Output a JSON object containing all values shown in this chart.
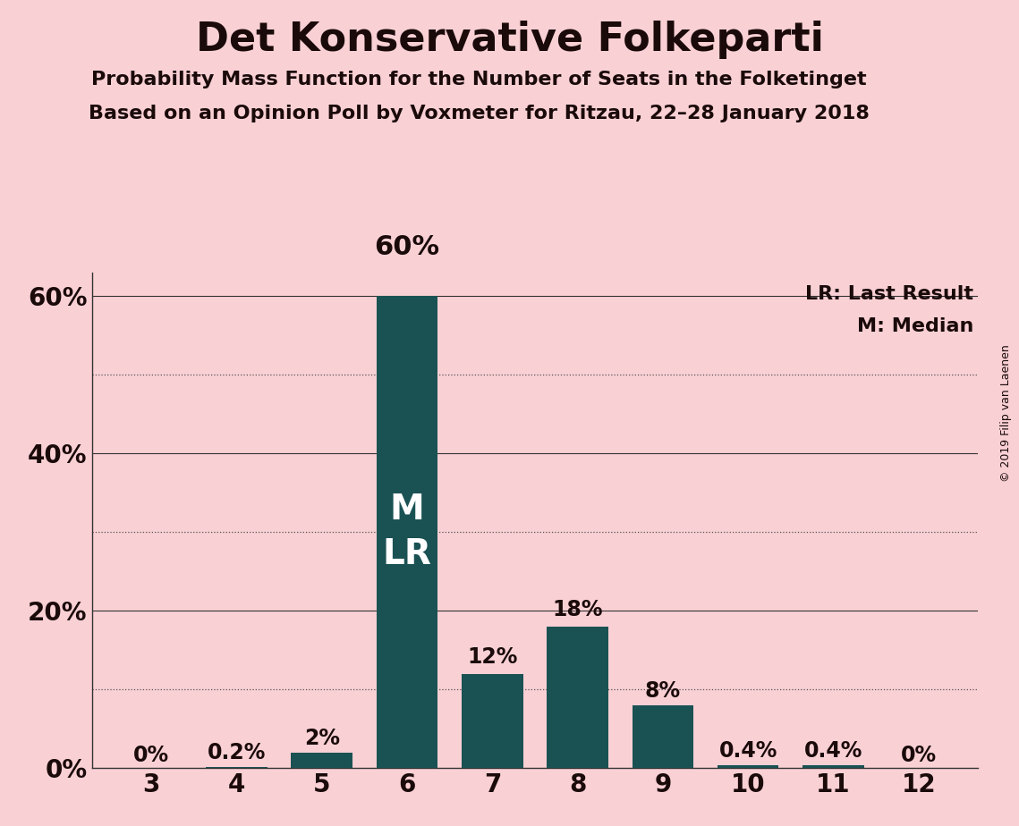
{
  "title": "Det Konservative Folkeparti",
  "subtitle1": "Probability Mass Function for the Number of Seats in the Folketinget",
  "subtitle2": "Based on an Opinion Poll by Voxmeter for Ritzau, 22–28 January 2018",
  "copyright": "© 2019 Filip van Laenen",
  "categories": [
    3,
    4,
    5,
    6,
    7,
    8,
    9,
    10,
    11,
    12
  ],
  "values": [
    0.0,
    0.2,
    2.0,
    60.0,
    12.0,
    18.0,
    8.0,
    0.4,
    0.4,
    0.0
  ],
  "labels": [
    "0%",
    "0.2%",
    "2%",
    "60%",
    "12%",
    "18%",
    "8%",
    "0.4%",
    "0.4%",
    "0%"
  ],
  "bar_color": "#1a5254",
  "background_color": "#f9d0d4",
  "text_color": "#1a0a0a",
  "label_color_inside": "#ffffff",
  "ylim": [
    0,
    63
  ],
  "yticks_solid": [
    0,
    20,
    40,
    60
  ],
  "yticks_dotted": [
    10,
    30,
    50
  ],
  "ytick_labels_solid": [
    "0%",
    "20%",
    "40%",
    "60%"
  ],
  "median_seat": 6,
  "lr_seat": 6,
  "legend_lr": "LR: Last Result",
  "legend_m": "M: Median",
  "bar_width": 0.72
}
